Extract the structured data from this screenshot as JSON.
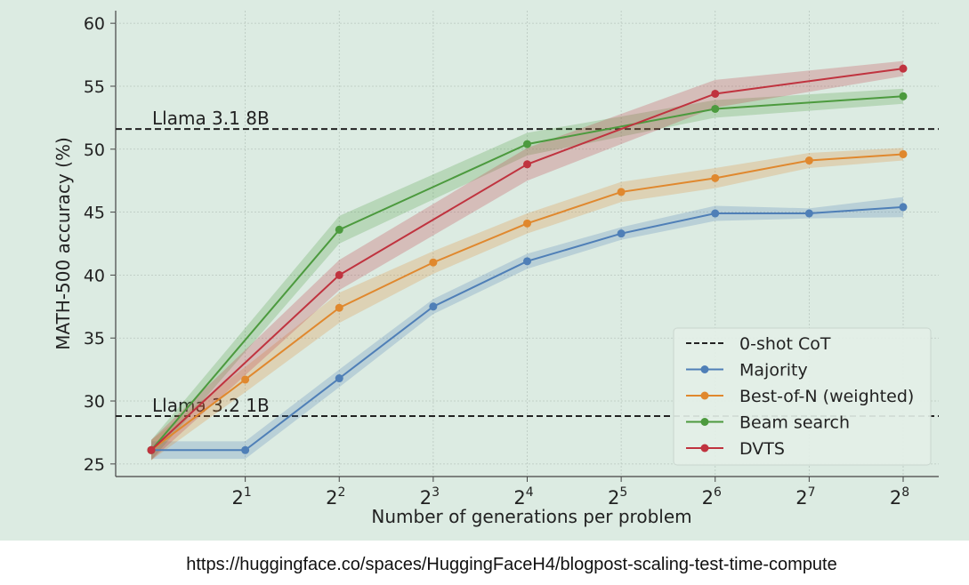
{
  "chart_data": {
    "type": "line",
    "title": "",
    "xlabel": "Number of generations per problem",
    "ylabel": "MATH-500 accuracy (%)",
    "x": [
      1,
      2,
      4,
      8,
      16,
      32,
      64,
      128,
      256
    ],
    "x_scale": "log2",
    "x_ticks": [
      {
        "base": "2",
        "exp": "1"
      },
      {
        "base": "2",
        "exp": "2"
      },
      {
        "base": "2",
        "exp": "3"
      },
      {
        "base": "2",
        "exp": "4"
      },
      {
        "base": "2",
        "exp": "5"
      },
      {
        "base": "2",
        "exp": "6"
      },
      {
        "base": "2",
        "exp": "7"
      },
      {
        "base": "2",
        "exp": "8"
      }
    ],
    "ylim": [
      24,
      61
    ],
    "y_ticks": [
      "25",
      "30",
      "35",
      "40",
      "45",
      "50",
      "55",
      "60"
    ],
    "grid": true,
    "legend_position": "lower-right",
    "reference_lines": [
      {
        "label": "Llama 3.1 8B",
        "y": 51.6,
        "style": "dashed",
        "color": "#222222"
      },
      {
        "label": "Llama 3.2 1B",
        "y": 28.8,
        "style": "dashed",
        "color": "#222222"
      }
    ],
    "reference_legend_label": "0-shot CoT",
    "series": [
      {
        "name": "Majority",
        "color": "#4f7fb7",
        "values": [
          26.1,
          26.1,
          31.8,
          37.5,
          41.1,
          43.3,
          44.9,
          44.9,
          45.4
        ],
        "band": [
          0.7,
          0.7,
          0.7,
          0.6,
          0.6,
          0.5,
          0.6,
          0.4,
          0.8
        ]
      },
      {
        "name": "Best-of-N (weighted)",
        "color": "#e0882e",
        "values": [
          26.1,
          31.7,
          37.4,
          41.0,
          44.1,
          46.6,
          47.7,
          49.1,
          49.6
        ],
        "band": [
          0.8,
          1.0,
          1.2,
          0.9,
          0.8,
          0.8,
          0.8,
          0.6,
          0.5
        ]
      },
      {
        "name": "Beam search",
        "color": "#4c9a3e",
        "values": [
          26.1,
          null,
          43.6,
          null,
          50.4,
          null,
          53.2,
          null,
          54.2
        ],
        "band": [
          0.8,
          null,
          1.1,
          null,
          0.9,
          null,
          0.7,
          null,
          0.6
        ]
      },
      {
        "name": "DVTS",
        "color": "#c0333f",
        "values": [
          26.1,
          null,
          40.0,
          null,
          48.8,
          null,
          54.4,
          null,
          56.4
        ],
        "band": [
          0.8,
          null,
          1.2,
          null,
          1.3,
          null,
          1.1,
          null,
          0.6
        ]
      }
    ]
  },
  "caption": "https://huggingface.co/spaces/HuggingFaceH4/blogpost-scaling-test-time-compute"
}
